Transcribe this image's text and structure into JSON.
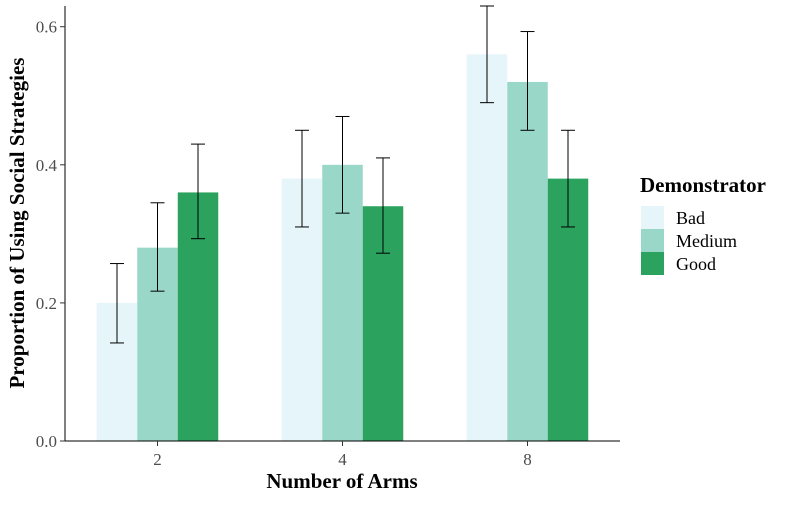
{
  "chart_data": {
    "type": "bar",
    "xlabel": "Number of Arms",
    "ylabel": "Proportion of Using Social Strategies",
    "categories": [
      "2",
      "4",
      "8"
    ],
    "ylim": [
      0,
      0.63
    ],
    "yticks": [
      0.0,
      0.2,
      0.4,
      0.6
    ],
    "ytick_labels": [
      "0.0",
      "0.2",
      "0.4",
      "0.6"
    ],
    "grid": false,
    "legend": {
      "title": "Demonstrator",
      "placement": "right"
    },
    "series": [
      {
        "name": "Bad",
        "color": "#e5f5f9",
        "values": [
          0.2,
          0.38,
          0.56
        ],
        "err_low": [
          0.142,
          0.31,
          0.49
        ],
        "err_high": [
          0.257,
          0.45,
          0.63
        ]
      },
      {
        "name": "Medium",
        "color": "#99d8c9",
        "values": [
          0.28,
          0.4,
          0.52
        ],
        "err_low": [
          0.217,
          0.33,
          0.45
        ],
        "err_high": [
          0.345,
          0.47,
          0.593
        ]
      },
      {
        "name": "Good",
        "color": "#2ca25f",
        "values": [
          0.36,
          0.34,
          0.38
        ],
        "err_low": [
          0.293,
          0.272,
          0.31
        ],
        "err_high": [
          0.43,
          0.41,
          0.45
        ]
      }
    ]
  }
}
